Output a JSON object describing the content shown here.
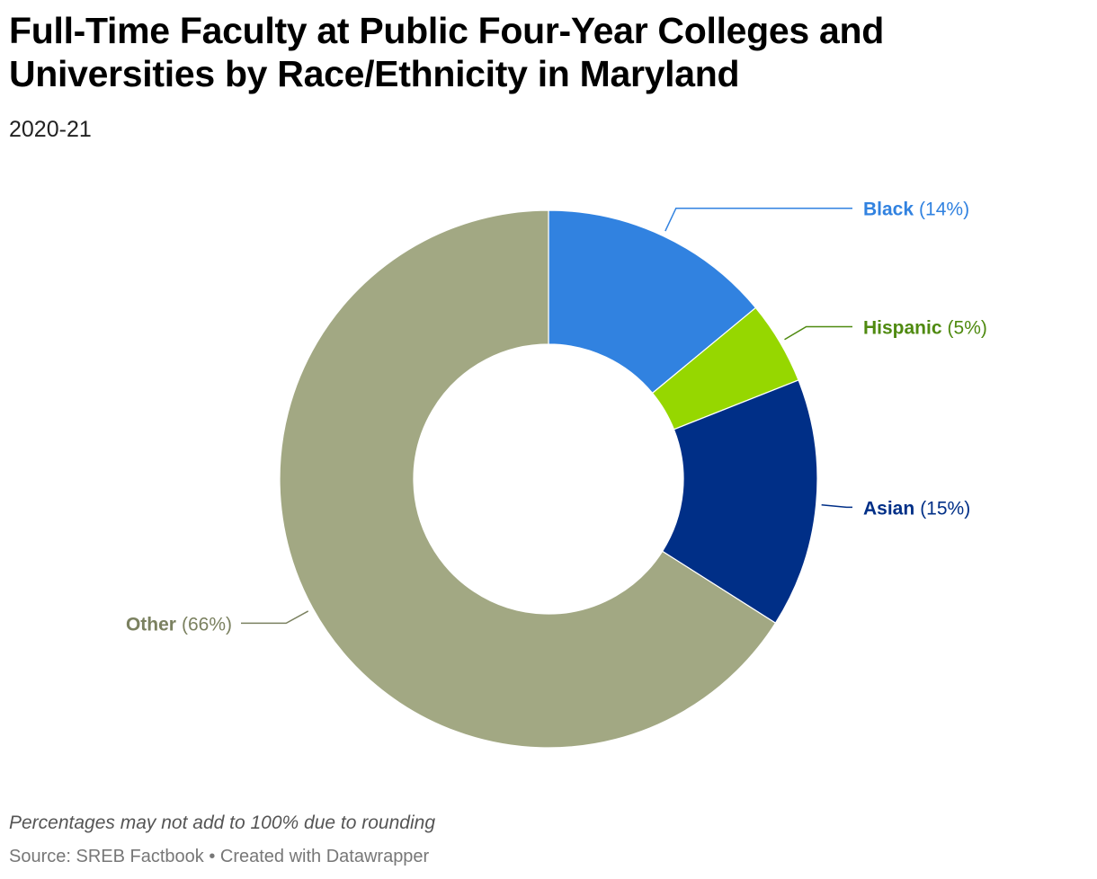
{
  "header": {
    "title": "Full-Time Faculty at Public Four-Year Colleges and Universities by Race/Ethnicity in Maryland",
    "subtitle": "2020-21"
  },
  "footer": {
    "note": "Percentages may not add to 100% due to rounding",
    "source": "Source: SREB Factbook • Created with Datawrapper"
  },
  "chart_data": {
    "type": "pie",
    "variant": "donut",
    "slices": [
      {
        "name": "Black",
        "value": 14,
        "label": "(14%)",
        "color": "#3182e0",
        "label_color": "#3182e0"
      },
      {
        "name": "Hispanic",
        "value": 5,
        "label": "(5%)",
        "color": "#96d700",
        "label_color": "#4f8a10"
      },
      {
        "name": "Asian",
        "value": 15,
        "label": "(15%)",
        "color": "#002f87",
        "label_color": "#002f87"
      },
      {
        "name": "Other",
        "value": 66,
        "label": "(66%)",
        "color": "#a2a883",
        "label_color": "#7b8160"
      }
    ]
  }
}
